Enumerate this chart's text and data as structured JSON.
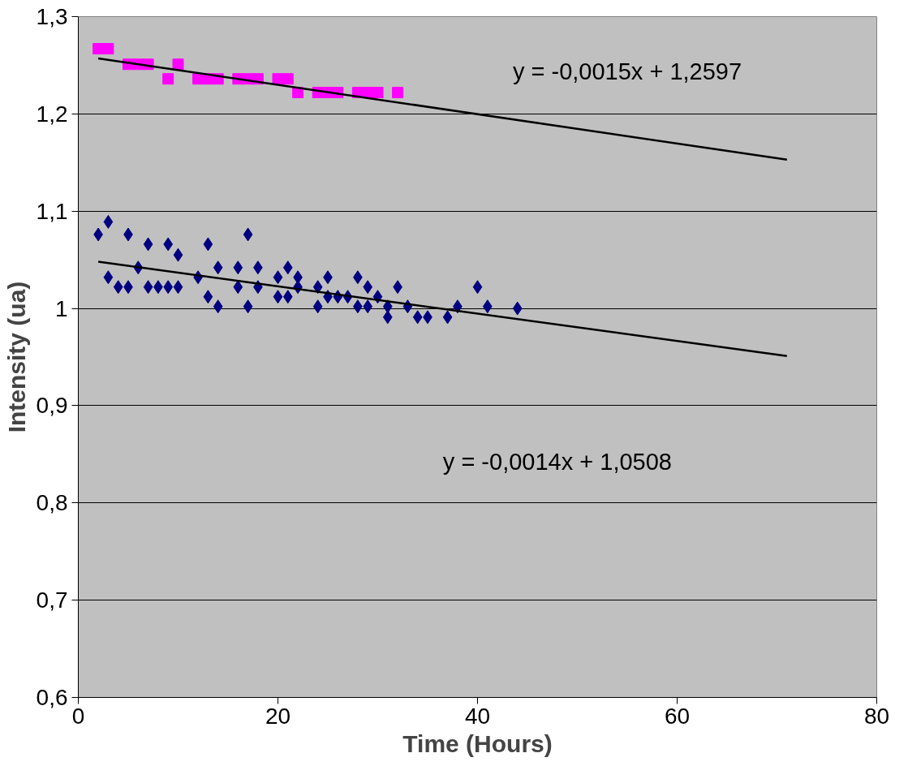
{
  "chart_data": {
    "type": "scatter",
    "xlabel": "Time (Hours)",
    "ylabel": "Intensity (ua)",
    "xlim": [
      0,
      80
    ],
    "ylim": [
      0.6,
      1.3
    ],
    "xticks": [
      0,
      20,
      40,
      60,
      80
    ],
    "yticks": [
      {
        "value": 0.6,
        "label": "0,6"
      },
      {
        "value": 0.7,
        "label": "0,7"
      },
      {
        "value": 0.8,
        "label": "0,8"
      },
      {
        "value": 0.9,
        "label": "0,9"
      },
      {
        "value": 1.0,
        "label": "1"
      },
      {
        "value": 1.1,
        "label": "1,1"
      },
      {
        "value": 1.2,
        "label": "1,2"
      },
      {
        "value": 1.3,
        "label": "1,3"
      }
    ],
    "grid": "y",
    "series": [
      {
        "marker": "square",
        "color": "#ff00ff",
        "x": [
          2,
          3,
          5,
          6,
          7,
          9,
          10,
          12,
          13,
          14,
          16,
          17,
          18,
          20,
          21,
          22,
          24,
          25,
          26,
          28,
          29,
          30,
          32
        ],
        "values": [
          1.267,
          1.267,
          1.251,
          1.251,
          1.251,
          1.236,
          1.251,
          1.236,
          1.236,
          1.236,
          1.236,
          1.236,
          1.236,
          1.236,
          1.236,
          1.222,
          1.222,
          1.222,
          1.222,
          1.222,
          1.222,
          1.222,
          1.222
        ]
      },
      {
        "marker": "diamond",
        "color": "#000080",
        "x": [
          2,
          3,
          3,
          4,
          5,
          5,
          6,
          7,
          7,
          8,
          9,
          9,
          10,
          10,
          12,
          13,
          13,
          14,
          14,
          16,
          16,
          17,
          17,
          18,
          18,
          20,
          20,
          21,
          21,
          22,
          22,
          24,
          24,
          25,
          25,
          26,
          27,
          28,
          28,
          29,
          29,
          30,
          31,
          31,
          32,
          33,
          34,
          35,
          37,
          38,
          40,
          41,
          44
        ],
        "values": [
          1.076,
          1.089,
          1.032,
          1.022,
          1.022,
          1.076,
          1.042,
          1.066,
          1.022,
          1.022,
          1.066,
          1.022,
          1.055,
          1.022,
          1.032,
          1.066,
          1.012,
          1.042,
          1.002,
          1.042,
          1.022,
          1.076,
          1.002,
          1.042,
          1.022,
          1.032,
          1.012,
          1.042,
          1.012,
          1.032,
          1.022,
          1.022,
          1.002,
          1.032,
          1.012,
          1.012,
          1.012,
          1.032,
          1.002,
          1.022,
          1.002,
          1.012,
          1.002,
          0.991,
          1.022,
          1.002,
          0.991,
          0.991,
          0.991,
          1.002,
          1.022,
          1.002,
          1.0
        ]
      },
      {
        "type": "line",
        "color": "#000000",
        "x": [
          2,
          71
        ],
        "values": [
          1.257,
          1.153
        ]
      },
      {
        "type": "line",
        "color": "#000000",
        "x": [
          2,
          71
        ],
        "values": [
          1.048,
          0.951
        ]
      }
    ],
    "annotations": [
      "y = -0,0015x + 1,2597",
      "y = -0,0014x + 1,0508"
    ]
  }
}
